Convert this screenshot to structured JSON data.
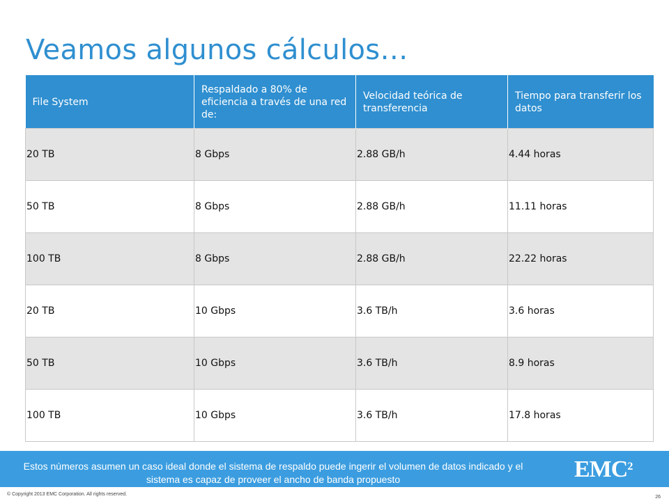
{
  "slide": {
    "title": "Veamos algunos cálculos…"
  },
  "table": {
    "headers": [
      "File System",
      "Respaldado a 80% de eficiencia a través de una red de:",
      "Velocidad teórica de transferencia",
      "Tiempo para transferir los datos"
    ],
    "rows": [
      [
        "20 TB",
        "8 Gbps",
        "2.88 GB/h",
        "4.44 horas"
      ],
      [
        "50 TB",
        "8 Gbps",
        "2.88 GB/h",
        "11.11 horas"
      ],
      [
        "100 TB",
        "8 Gbps",
        "2.88 GB/h",
        "22.22 horas"
      ],
      [
        "20 TB",
        "10 Gbps",
        "3.6 TB/h",
        "3.6 horas"
      ],
      [
        "50 TB",
        "10 Gbps",
        "3.6 TB/h",
        "8.9 horas"
      ],
      [
        "100 TB",
        "10 Gbps",
        "3.6 TB/h",
        "17.8 horas"
      ]
    ]
  },
  "footer": {
    "note": "Estos números asumen un caso ideal donde el sistema de respaldo puede ingerir el volumen de datos indicado y el sistema es capaz de proveer el ancho de banda propuesto",
    "logo_text": "EMC",
    "logo_sup": "2",
    "copyright": "© Copyright 2013 EMC Corporation. All rights reserved.",
    "page_number": "26"
  },
  "colors": {
    "accent": "#2f8fd0",
    "footer_bar": "#3b9de0",
    "row_shade": "#e4e4e4"
  }
}
